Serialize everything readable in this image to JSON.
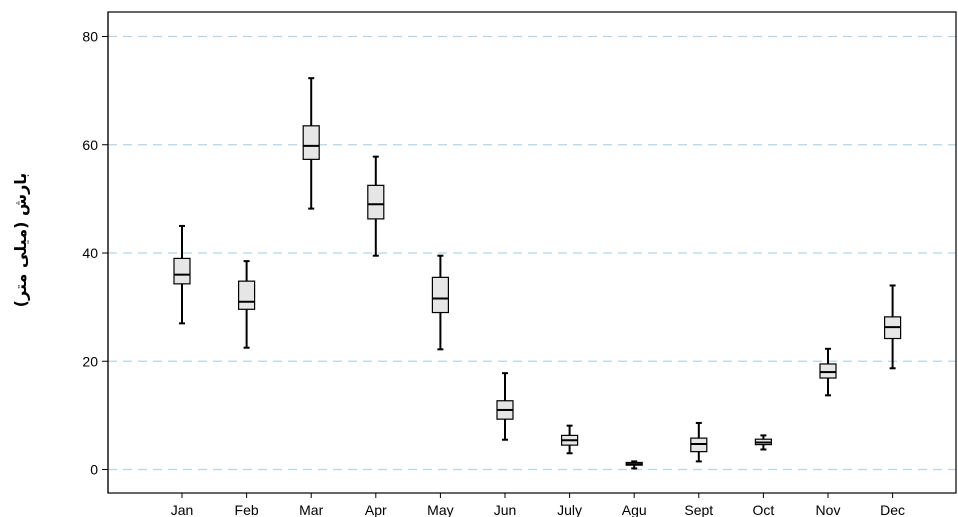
{
  "chart_data": {
    "type": "boxplot",
    "title": "",
    "xlabel": "",
    "ylabel": "بارش (میلی متر)",
    "ylim": [
      -4,
      84
    ],
    "yticks": [
      0,
      20,
      40,
      60,
      80
    ],
    "grid": "horizontal-dashed",
    "colors": {
      "box_fill": "#e6e6e6",
      "box_stroke": "#000000",
      "grid": "#b8d4e6",
      "axis": "#000000"
    },
    "categories": [
      "Jan",
      "Feb",
      "Mar",
      "Apr",
      "May",
      "Jun",
      "July",
      "Agu",
      "Sept",
      "Oct",
      "Nov",
      "Dec"
    ],
    "boxes": [
      {
        "min": 27,
        "q1": 34.3,
        "median": 36,
        "q3": 39,
        "max": 45
      },
      {
        "min": 22.5,
        "q1": 29.6,
        "median": 31,
        "q3": 34.8,
        "max": 38.5
      },
      {
        "min": 48.2,
        "q1": 57.3,
        "median": 59.8,
        "q3": 63.5,
        "max": 72.3
      },
      {
        "min": 39.5,
        "q1": 46.3,
        "median": 49,
        "q3": 52.5,
        "max": 57.8
      },
      {
        "min": 22.2,
        "q1": 29,
        "median": 31.6,
        "q3": 35.5,
        "max": 39.5
      },
      {
        "min": 5.5,
        "q1": 9.3,
        "median": 11,
        "q3": 12.7,
        "max": 17.8
      },
      {
        "min": 3,
        "q1": 4.5,
        "median": 5.4,
        "q3": 6.3,
        "max": 8.1
      },
      {
        "min": 0.2,
        "q1": 0.8,
        "median": 1,
        "q3": 1.3,
        "max": 1.5
      },
      {
        "min": 1.5,
        "q1": 3.3,
        "median": 4.7,
        "q3": 5.8,
        "max": 8.6
      },
      {
        "min": 3.7,
        "q1": 4.6,
        "median": 5,
        "q3": 5.6,
        "max": 6.3
      },
      {
        "min": 13.7,
        "q1": 16.9,
        "median": 18,
        "q3": 19.5,
        "max": 22.3
      },
      {
        "min": 18.7,
        "q1": 24.2,
        "median": 26.3,
        "q3": 28.2,
        "max": 34
      }
    ]
  }
}
